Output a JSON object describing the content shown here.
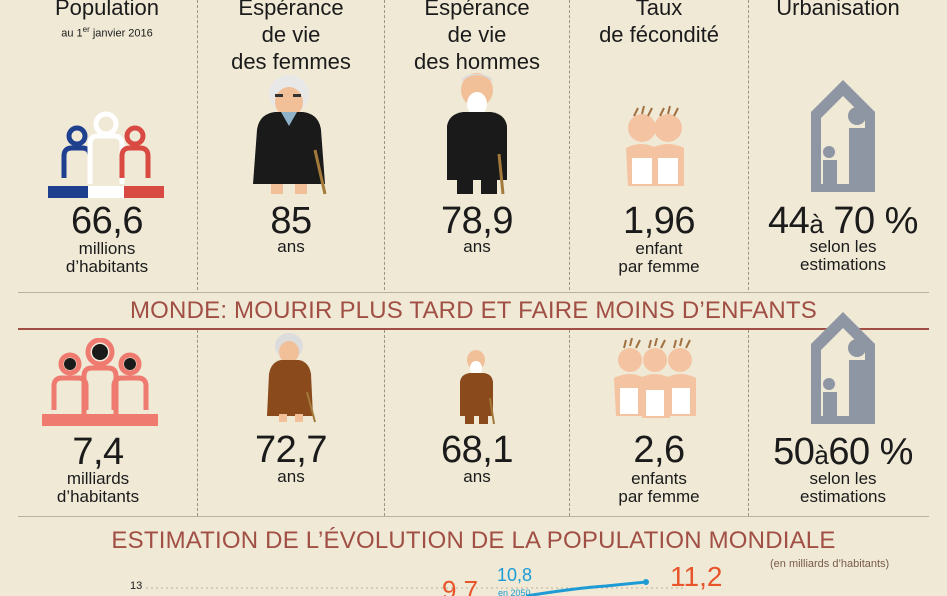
{
  "france": {
    "population": {
      "title": "Population",
      "subtitle_pre": "au 1",
      "subtitle_sup": "er",
      "subtitle_post": " janvier 2016",
      "value": "66,6",
      "unit_1": "millions",
      "unit_2": "d’habitants"
    },
    "life_women": {
      "title_1": "Espérance",
      "title_2": "de vie",
      "title_3": "des femmes",
      "value": "85",
      "unit": "ans"
    },
    "life_men": {
      "title_1": "Espérance",
      "title_2": "de vie",
      "title_3": "des hommes",
      "value": "78,9",
      "unit": "ans"
    },
    "fertility": {
      "title_1": "Taux",
      "title_2": "de fécondité",
      "value": "1,96",
      "unit_1": "enfant",
      "unit_2": "par femme"
    },
    "urbanisation": {
      "title": "Urbanisation",
      "value_a": "44",
      "sep": "à",
      "value_b": "70 %",
      "unit_1": "selon les",
      "unit_2": "estimations"
    }
  },
  "world": {
    "band_title": "MONDE: MOURIR PLUS TARD ET FAIRE MOINS D’ENFANTS",
    "population": {
      "value": "7,4",
      "unit_1": "milliards",
      "unit_2": "d’habitants"
    },
    "life_women": {
      "value": "72,7",
      "unit": "ans"
    },
    "life_men": {
      "value": "68,1",
      "unit": "ans"
    },
    "fertility": {
      "value": "2,6",
      "unit_1": "enfants",
      "unit_2": "par femme"
    },
    "urbanisation": {
      "value_a": "50",
      "sep": "à",
      "value_b": "60 %",
      "unit_1": "selon les",
      "unit_2": "estimations"
    }
  },
  "estimate": {
    "title": "ESTIMATION DE L’ÉVOLUTION DE LA POPULATION MONDIALE",
    "note": "(en milliards d’habitants)",
    "y_tick": "13",
    "label_left": "9,7",
    "label_mid": "10,8",
    "label_mid_sub": "en 2050",
    "label_right": "11,2"
  },
  "colors": {
    "background": "#efe9d6",
    "accent": "#a14f44",
    "blue": "#1f3f8f",
    "red": "#d94a42",
    "salmon": "#ee7a70",
    "grey": "#8e95a3",
    "orange": "#e8552a",
    "teal": "#1d9bd4",
    "brown": "#8a4a1b"
  },
  "icons": [
    "people-tricolor-icon",
    "elderly-woman-icon",
    "elderly-man-icon",
    "twin-babies-icon",
    "urban-house-icon",
    "people-globe-icon",
    "triplet-babies-icon"
  ]
}
